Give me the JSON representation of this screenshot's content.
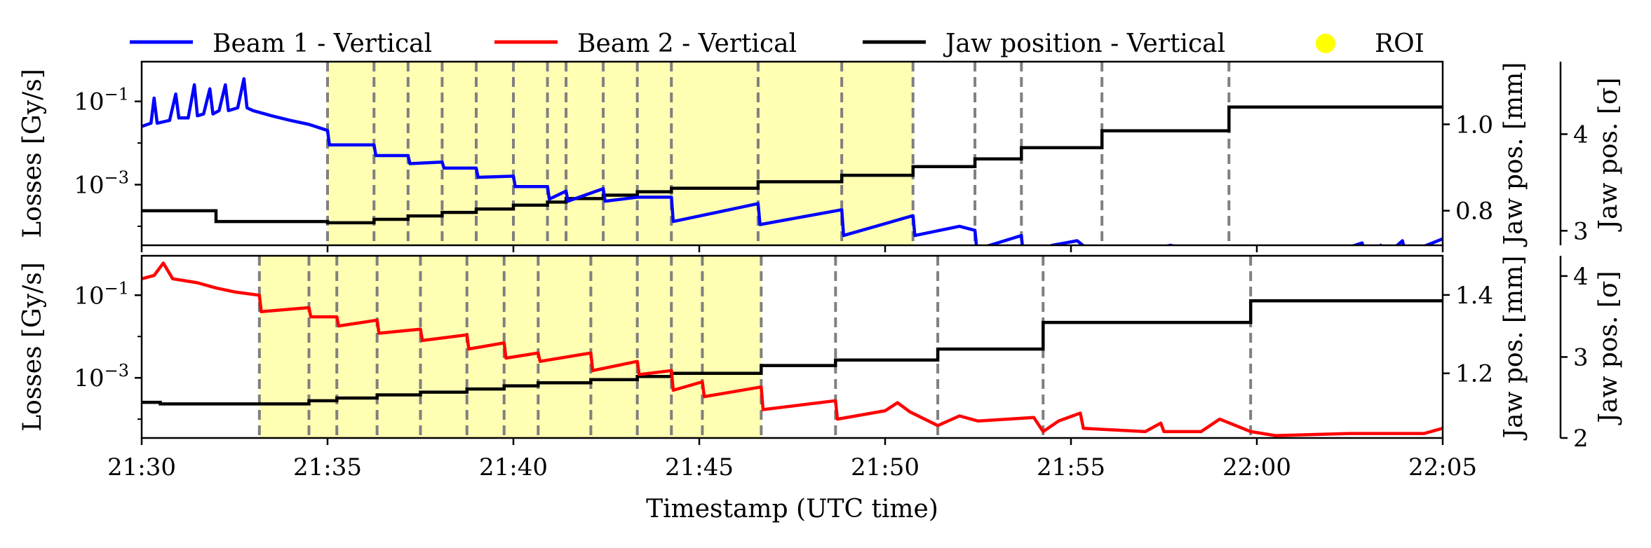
{
  "chart_data": {
    "type": "line",
    "xlabel": "Timestamp (UTC time)",
    "x_ticks": [
      "21:30",
      "21:35",
      "21:40",
      "21:45",
      "21:50",
      "21:55",
      "22:00",
      "22:05"
    ],
    "xlim": [
      "21:30",
      "22:05"
    ],
    "legend": {
      "placement": "top",
      "entries": [
        {
          "label": "Beam 1 - Vertical",
          "color": "#0000ff",
          "kind": "line"
        },
        {
          "label": "Beam 2 - Vertical",
          "color": "#ff0000",
          "kind": "line"
        },
        {
          "label": "Jaw position - Vertical",
          "color": "#000000",
          "kind": "line"
        },
        {
          "label": "ROI",
          "color": "#ffff00",
          "kind": "dot"
        }
      ]
    },
    "roi_color": "#ffffb3",
    "panels": [
      {
        "ylabel_left": "Losses [Gy/s]",
        "ylabel_right": "Jaw pos. [mm]",
        "ylabel_right2": "Jaw pos. [σ]",
        "yscale": "log",
        "ylim": [
          3.5e-05,
          0.9
        ],
        "y_ticks_left": [
          "10^-1",
          "10^-3"
        ],
        "y_ticks_right": [
          {
            "v": 1.0,
            "label": "1.0"
          },
          {
            "v": 0.8,
            "label": "0.8"
          }
        ],
        "y_ticks_right2": [
          {
            "v": 4,
            "label": "4"
          },
          {
            "v": 3,
            "label": "3"
          }
        ],
        "right_range": [
          0.72,
          1.145
        ],
        "right2_range": [
          2.85,
          4.75
        ],
        "roi": [
          "21:35:00",
          "21:50:45"
        ],
        "step_lines": [
          "21:35:00",
          "21:36:15",
          "21:37:10",
          "21:38:05",
          "21:39:00",
          "21:40:00",
          "21:40:55",
          "21:41:25",
          "21:42:25",
          "21:43:20",
          "21:44:15",
          "21:46:35",
          "21:48:50",
          "21:50:45",
          "21:52:25",
          "21:53:40",
          "21:55:50",
          "21:59:15"
        ],
        "beam": {
          "name": "Beam 1 - Vertical",
          "color": "#0000ff",
          "points": [
            [
              "21:30:00",
              0.025
            ],
            [
              "21:30:15",
              0.03
            ],
            [
              "21:30:20",
              0.12
            ],
            [
              "21:30:25",
              0.03
            ],
            [
              "21:30:45",
              0.035
            ],
            [
              "21:30:55",
              0.15
            ],
            [
              "21:31:00",
              0.04
            ],
            [
              "21:31:15",
              0.04
            ],
            [
              "21:31:25",
              0.25
            ],
            [
              "21:31:30",
              0.045
            ],
            [
              "21:31:40",
              0.05
            ],
            [
              "21:31:50",
              0.2
            ],
            [
              "21:31:55",
              0.05
            ],
            [
              "21:32:05",
              0.06
            ],
            [
              "21:32:15",
              0.25
            ],
            [
              "21:32:20",
              0.06
            ],
            [
              "21:32:35",
              0.07
            ],
            [
              "21:32:45",
              0.35
            ],
            [
              "21:32:50",
              0.07
            ],
            [
              "21:33:00",
              0.06
            ],
            [
              "21:33:30",
              0.045
            ],
            [
              "21:34:00",
              0.035
            ],
            [
              "21:34:30",
              0.028
            ],
            [
              "21:35:00",
              0.02
            ],
            [
              "21:35:03",
              0.009
            ],
            [
              "21:36:15",
              0.009
            ],
            [
              "21:36:18",
              0.005
            ],
            [
              "21:37:10",
              0.005
            ],
            [
              "21:37:13",
              0.0032
            ],
            [
              "21:38:05",
              0.0035
            ],
            [
              "21:38:08",
              0.0025
            ],
            [
              "21:39:00",
              0.0025
            ],
            [
              "21:39:03",
              0.0015
            ],
            [
              "21:40:00",
              0.0016
            ],
            [
              "21:40:03",
              0.0009
            ],
            [
              "21:40:55",
              0.0009
            ],
            [
              "21:40:58",
              0.00045
            ],
            [
              "21:41:25",
              0.0007
            ],
            [
              "21:41:28",
              0.0004
            ],
            [
              "21:42:25",
              0.0008
            ],
            [
              "21:42:28",
              0.0004
            ],
            [
              "21:43:20",
              0.0005
            ],
            [
              "21:44:15",
              0.0005
            ],
            [
              "21:44:18",
              0.00013
            ],
            [
              "21:46:35",
              0.00035
            ],
            [
              "21:46:38",
              0.00011
            ],
            [
              "21:48:50",
              0.00025
            ],
            [
              "21:48:53",
              6e-05
            ],
            [
              "21:50:45",
              0.00018
            ],
            [
              "21:50:48",
              6e-05
            ],
            [
              "21:52:00",
              0.0001
            ],
            [
              "21:52:25",
              8e-05
            ],
            [
              "21:52:28",
              2.8e-05
            ],
            [
              "21:53:40",
              6e-05
            ],
            [
              "21:53:43",
              2e-05
            ],
            [
              "21:54:30",
              3.5e-05
            ],
            [
              "21:55:10",
              4.5e-05
            ],
            [
              "21:55:50",
              1.5e-05
            ],
            [
              "21:56:40",
              2e-05
            ],
            [
              "21:57:40",
              3.5e-05
            ],
            [
              "21:58:30",
              2.5e-05
            ],
            [
              "21:59:15",
              1.5e-05
            ],
            [
              "21:59:40",
              1.2e-05
            ],
            [
              "22:01:00",
              1.3e-05
            ],
            [
              "22:01:40",
              1.8e-05
            ],
            [
              "22:02:50",
              4e-05
            ],
            [
              "22:02:55",
              1.5e-05
            ],
            [
              "22:03:20",
              3.5e-05
            ],
            [
              "22:03:25",
              1.8e-05
            ],
            [
              "22:03:55",
              4.5e-05
            ],
            [
              "22:04:00",
              2.2e-05
            ],
            [
              "22:05:00",
              5e-05
            ]
          ]
        },
        "jaw": {
          "name": "Jaw position - Vertical",
          "color": "#000000",
          "points": [
            [
              "21:30:00",
              0.8
            ],
            [
              "21:32:00",
              0.775
            ],
            [
              "21:35:00",
              0.772
            ],
            [
              "21:36:15",
              0.78
            ],
            [
              "21:37:10",
              0.788
            ],
            [
              "21:38:05",
              0.796
            ],
            [
              "21:39:00",
              0.804
            ],
            [
              "21:40:00",
              0.813
            ],
            [
              "21:40:55",
              0.82
            ],
            [
              "21:41:25",
              0.828
            ],
            [
              "21:42:25",
              0.836
            ],
            [
              "21:43:20",
              0.844
            ],
            [
              "21:44:15",
              0.852
            ],
            [
              "21:46:35",
              0.867
            ],
            [
              "21:48:50",
              0.882
            ],
            [
              "21:50:45",
              0.902
            ],
            [
              "21:52:25",
              0.92
            ],
            [
              "21:53:40",
              0.946
            ],
            [
              "21:55:50",
              0.985
            ],
            [
              "21:59:15",
              1.04
            ],
            [
              "22:05:00",
              1.04
            ]
          ]
        }
      },
      {
        "ylabel_left": "Losses [Gy/s]",
        "ylabel_right": "Jaw pos. [mm]",
        "ylabel_right2": "Jaw pos. [σ]",
        "yscale": "log",
        "ylim": [
          3.5e-05,
          0.9
        ],
        "y_ticks_left": [
          "10^-1",
          "10^-3"
        ],
        "y_ticks_right": [
          {
            "v": 1.4,
            "label": "1.4"
          },
          {
            "v": 1.2,
            "label": "1.2"
          }
        ],
        "y_ticks_right2": [
          {
            "v": 4,
            "label": "4"
          },
          {
            "v": 3,
            "label": "3"
          },
          {
            "v": 2,
            "label": "2"
          }
        ],
        "right_range": [
          1.035,
          1.5
        ],
        "right2_range": [
          2.0,
          4.25
        ],
        "roi": [
          "21:33:10",
          "21:46:40"
        ],
        "step_lines": [
          "21:33:10",
          "21:34:30",
          "21:35:15",
          "21:36:20",
          "21:37:30",
          "21:38:45",
          "21:39:45",
          "21:40:40",
          "21:42:05",
          "21:43:20",
          "21:44:15",
          "21:45:05",
          "21:46:40",
          "21:48:40",
          "21:51:25",
          "21:54:15",
          "21:59:50"
        ],
        "beam": {
          "name": "Beam 2 - Vertical",
          "color": "#ff0000",
          "points": [
            [
              "21:30:00",
              0.25
            ],
            [
              "21:30:20",
              0.3
            ],
            [
              "21:30:35",
              0.6
            ],
            [
              "21:30:50",
              0.25
            ],
            [
              "21:31:30",
              0.2
            ],
            [
              "21:32:00",
              0.15
            ],
            [
              "21:32:30",
              0.12
            ],
            [
              "21:33:10",
              0.1
            ],
            [
              "21:33:13",
              0.04
            ],
            [
              "21:34:30",
              0.05
            ],
            [
              "21:34:33",
              0.03
            ],
            [
              "21:35:15",
              0.03
            ],
            [
              "21:35:18",
              0.018
            ],
            [
              "21:36:20",
              0.025
            ],
            [
              "21:36:23",
              0.012
            ],
            [
              "21:37:30",
              0.015
            ],
            [
              "21:37:33",
              0.008
            ],
            [
              "21:38:45",
              0.011
            ],
            [
              "21:38:48",
              0.005
            ],
            [
              "21:39:45",
              0.007
            ],
            [
              "21:39:48",
              0.003
            ],
            [
              "21:40:40",
              0.004
            ],
            [
              "21:40:43",
              0.0025
            ],
            [
              "21:42:05",
              0.004
            ],
            [
              "21:42:08",
              0.0015
            ],
            [
              "21:43:20",
              0.0025
            ],
            [
              "21:43:23",
              0.0012
            ],
            [
              "21:44:15",
              0.0015
            ],
            [
              "21:44:18",
              0.0005
            ],
            [
              "21:45:05",
              0.0008
            ],
            [
              "21:45:08",
              0.00035
            ],
            [
              "21:46:40",
              0.0006
            ],
            [
              "21:46:43",
              0.00017
            ],
            [
              "21:48:40",
              0.00028
            ],
            [
              "21:48:43",
              0.0001
            ],
            [
              "21:50:00",
              0.00016
            ],
            [
              "21:50:20",
              0.00025
            ],
            [
              "21:50:40",
              0.00015
            ],
            [
              "21:51:25",
              7e-05
            ],
            [
              "21:52:00",
              0.00012
            ],
            [
              "21:52:30",
              9e-05
            ],
            [
              "21:54:00",
              0.00011
            ],
            [
              "21:54:15",
              5e-05
            ],
            [
              "21:54:40",
              9e-05
            ],
            [
              "21:55:15",
              0.00014
            ],
            [
              "21:55:20",
              6e-05
            ],
            [
              "21:57:00",
              5e-05
            ],
            [
              "21:57:25",
              8e-05
            ],
            [
              "21:57:30",
              5e-05
            ],
            [
              "21:58:30",
              5e-05
            ],
            [
              "21:59:00",
              0.0001
            ],
            [
              "21:59:50",
              5e-05
            ],
            [
              "22:00:30",
              4e-05
            ],
            [
              "22:02:30",
              4.5e-05
            ],
            [
              "22:04:30",
              4.5e-05
            ],
            [
              "22:05:00",
              6e-05
            ]
          ]
        },
        "jaw": {
          "name": "Jaw position - Vertical",
          "color": "#000000",
          "points": [
            [
              "21:30:00",
              1.126
            ],
            [
              "21:30:30",
              1.122
            ],
            [
              "21:33:10",
              1.122
            ],
            [
              "21:34:30",
              1.13
            ],
            [
              "21:35:15",
              1.137
            ],
            [
              "21:36:20",
              1.145
            ],
            [
              "21:37:30",
              1.152
            ],
            [
              "21:38:45",
              1.16
            ],
            [
              "21:39:45",
              1.168
            ],
            [
              "21:40:40",
              1.176
            ],
            [
              "21:42:05",
              1.184
            ],
            [
              "21:43:20",
              1.192
            ],
            [
              "21:44:15",
              1.2
            ],
            [
              "21:46:40",
              1.22
            ],
            [
              "21:48:40",
              1.234
            ],
            [
              "21:51:25",
              1.262
            ],
            [
              "21:54:15",
              1.33
            ],
            [
              "21:59:50",
              1.385
            ],
            [
              "22:05:00",
              1.385
            ]
          ]
        }
      }
    ]
  }
}
